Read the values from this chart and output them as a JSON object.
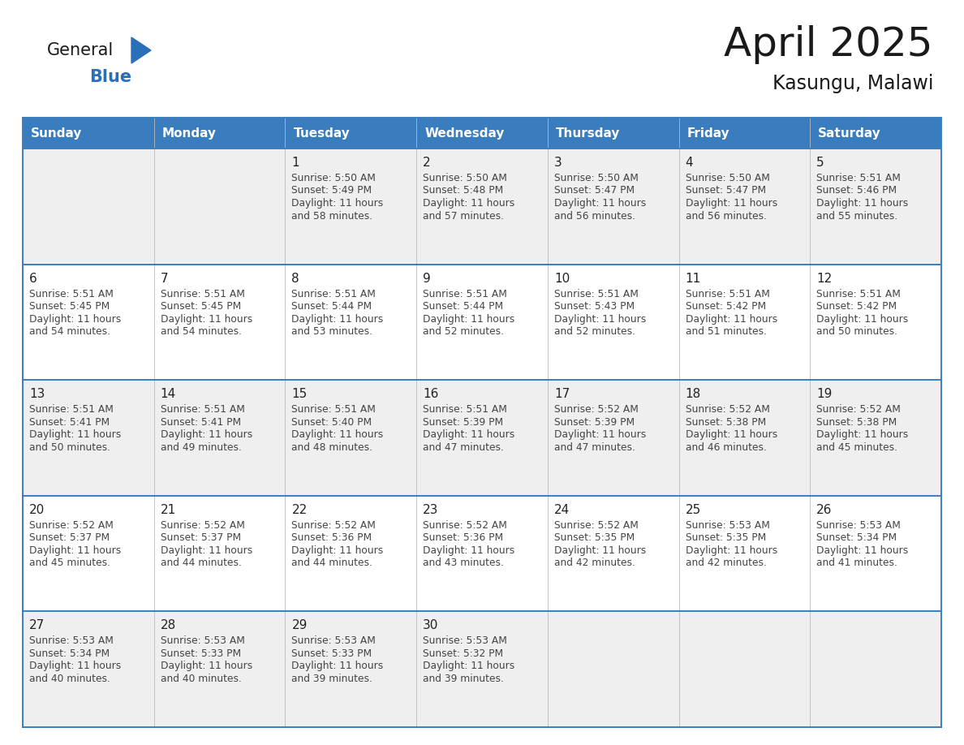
{
  "title": "April 2025",
  "subtitle": "Kasungu, Malawi",
  "header_bg_color": "#3a7dbf",
  "header_text_color": "#ffffff",
  "header_days": [
    "Sunday",
    "Monday",
    "Tuesday",
    "Wednesday",
    "Thursday",
    "Friday",
    "Saturday"
  ],
  "row_bg_light": "#efefef",
  "row_bg_white": "#ffffff",
  "border_color": "#3a7dbf",
  "text_color": "#444444",
  "day_number_color": "#222222",
  "logo_general_color": "#1a1a1a",
  "logo_blue_color": "#2a6fba",
  "logo_triangle_color": "#2a6fba",
  "days": [
    {
      "day": 1,
      "col": 2,
      "row": 0,
      "sunrise": "5:50 AM",
      "sunset": "5:49 PM",
      "daylight_hours": 11,
      "daylight_minutes": 58
    },
    {
      "day": 2,
      "col": 3,
      "row": 0,
      "sunrise": "5:50 AM",
      "sunset": "5:48 PM",
      "daylight_hours": 11,
      "daylight_minutes": 57
    },
    {
      "day": 3,
      "col": 4,
      "row": 0,
      "sunrise": "5:50 AM",
      "sunset": "5:47 PM",
      "daylight_hours": 11,
      "daylight_minutes": 56
    },
    {
      "day": 4,
      "col": 5,
      "row": 0,
      "sunrise": "5:50 AM",
      "sunset": "5:47 PM",
      "daylight_hours": 11,
      "daylight_minutes": 56
    },
    {
      "day": 5,
      "col": 6,
      "row": 0,
      "sunrise": "5:51 AM",
      "sunset": "5:46 PM",
      "daylight_hours": 11,
      "daylight_minutes": 55
    },
    {
      "day": 6,
      "col": 0,
      "row": 1,
      "sunrise": "5:51 AM",
      "sunset": "5:45 PM",
      "daylight_hours": 11,
      "daylight_minutes": 54
    },
    {
      "day": 7,
      "col": 1,
      "row": 1,
      "sunrise": "5:51 AM",
      "sunset": "5:45 PM",
      "daylight_hours": 11,
      "daylight_minutes": 54
    },
    {
      "day": 8,
      "col": 2,
      "row": 1,
      "sunrise": "5:51 AM",
      "sunset": "5:44 PM",
      "daylight_hours": 11,
      "daylight_minutes": 53
    },
    {
      "day": 9,
      "col": 3,
      "row": 1,
      "sunrise": "5:51 AM",
      "sunset": "5:44 PM",
      "daylight_hours": 11,
      "daylight_minutes": 52
    },
    {
      "day": 10,
      "col": 4,
      "row": 1,
      "sunrise": "5:51 AM",
      "sunset": "5:43 PM",
      "daylight_hours": 11,
      "daylight_minutes": 52
    },
    {
      "day": 11,
      "col": 5,
      "row": 1,
      "sunrise": "5:51 AM",
      "sunset": "5:42 PM",
      "daylight_hours": 11,
      "daylight_minutes": 51
    },
    {
      "day": 12,
      "col": 6,
      "row": 1,
      "sunrise": "5:51 AM",
      "sunset": "5:42 PM",
      "daylight_hours": 11,
      "daylight_minutes": 50
    },
    {
      "day": 13,
      "col": 0,
      "row": 2,
      "sunrise": "5:51 AM",
      "sunset": "5:41 PM",
      "daylight_hours": 11,
      "daylight_minutes": 50
    },
    {
      "day": 14,
      "col": 1,
      "row": 2,
      "sunrise": "5:51 AM",
      "sunset": "5:41 PM",
      "daylight_hours": 11,
      "daylight_minutes": 49
    },
    {
      "day": 15,
      "col": 2,
      "row": 2,
      "sunrise": "5:51 AM",
      "sunset": "5:40 PM",
      "daylight_hours": 11,
      "daylight_minutes": 48
    },
    {
      "day": 16,
      "col": 3,
      "row": 2,
      "sunrise": "5:51 AM",
      "sunset": "5:39 PM",
      "daylight_hours": 11,
      "daylight_minutes": 47
    },
    {
      "day": 17,
      "col": 4,
      "row": 2,
      "sunrise": "5:52 AM",
      "sunset": "5:39 PM",
      "daylight_hours": 11,
      "daylight_minutes": 47
    },
    {
      "day": 18,
      "col": 5,
      "row": 2,
      "sunrise": "5:52 AM",
      "sunset": "5:38 PM",
      "daylight_hours": 11,
      "daylight_minutes": 46
    },
    {
      "day": 19,
      "col": 6,
      "row": 2,
      "sunrise": "5:52 AM",
      "sunset": "5:38 PM",
      "daylight_hours": 11,
      "daylight_minutes": 45
    },
    {
      "day": 20,
      "col": 0,
      "row": 3,
      "sunrise": "5:52 AM",
      "sunset": "5:37 PM",
      "daylight_hours": 11,
      "daylight_minutes": 45
    },
    {
      "day": 21,
      "col": 1,
      "row": 3,
      "sunrise": "5:52 AM",
      "sunset": "5:37 PM",
      "daylight_hours": 11,
      "daylight_minutes": 44
    },
    {
      "day": 22,
      "col": 2,
      "row": 3,
      "sunrise": "5:52 AM",
      "sunset": "5:36 PM",
      "daylight_hours": 11,
      "daylight_minutes": 44
    },
    {
      "day": 23,
      "col": 3,
      "row": 3,
      "sunrise": "5:52 AM",
      "sunset": "5:36 PM",
      "daylight_hours": 11,
      "daylight_minutes": 43
    },
    {
      "day": 24,
      "col": 4,
      "row": 3,
      "sunrise": "5:52 AM",
      "sunset": "5:35 PM",
      "daylight_hours": 11,
      "daylight_minutes": 42
    },
    {
      "day": 25,
      "col": 5,
      "row": 3,
      "sunrise": "5:53 AM",
      "sunset": "5:35 PM",
      "daylight_hours": 11,
      "daylight_minutes": 42
    },
    {
      "day": 26,
      "col": 6,
      "row": 3,
      "sunrise": "5:53 AM",
      "sunset": "5:34 PM",
      "daylight_hours": 11,
      "daylight_minutes": 41
    },
    {
      "day": 27,
      "col": 0,
      "row": 4,
      "sunrise": "5:53 AM",
      "sunset": "5:34 PM",
      "daylight_hours": 11,
      "daylight_minutes": 40
    },
    {
      "day": 28,
      "col": 1,
      "row": 4,
      "sunrise": "5:53 AM",
      "sunset": "5:33 PM",
      "daylight_hours": 11,
      "daylight_minutes": 40
    },
    {
      "day": 29,
      "col": 2,
      "row": 4,
      "sunrise": "5:53 AM",
      "sunset": "5:33 PM",
      "daylight_hours": 11,
      "daylight_minutes": 39
    },
    {
      "day": 30,
      "col": 3,
      "row": 4,
      "sunrise": "5:53 AM",
      "sunset": "5:32 PM",
      "daylight_hours": 11,
      "daylight_minutes": 39
    }
  ]
}
